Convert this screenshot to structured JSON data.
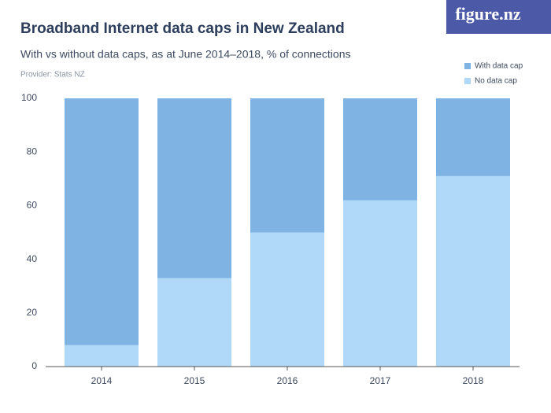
{
  "chart_data": {
    "type": "stacked_bar",
    "title": "Broadband Internet data caps in New Zealand",
    "subtitle": "With vs without data caps, as at June 2014–2018, % of connections",
    "provider": "Provider: Stats NZ",
    "logo": "figure.nz",
    "categories": [
      "2014",
      "2015",
      "2016",
      "2017",
      "2018"
    ],
    "series": [
      {
        "name": "With data cap",
        "color": "#7fb3e3",
        "values": [
          92,
          67,
          50,
          38,
          29
        ]
      },
      {
        "name": "No data cap",
        "color": "#b0d8f8",
        "values": [
          8,
          33,
          50,
          62,
          71
        ]
      }
    ],
    "ylim": [
      0,
      100
    ],
    "yticks": [
      0,
      20,
      40,
      60,
      80,
      100
    ],
    "grid": false,
    "legend": "top-right"
  }
}
